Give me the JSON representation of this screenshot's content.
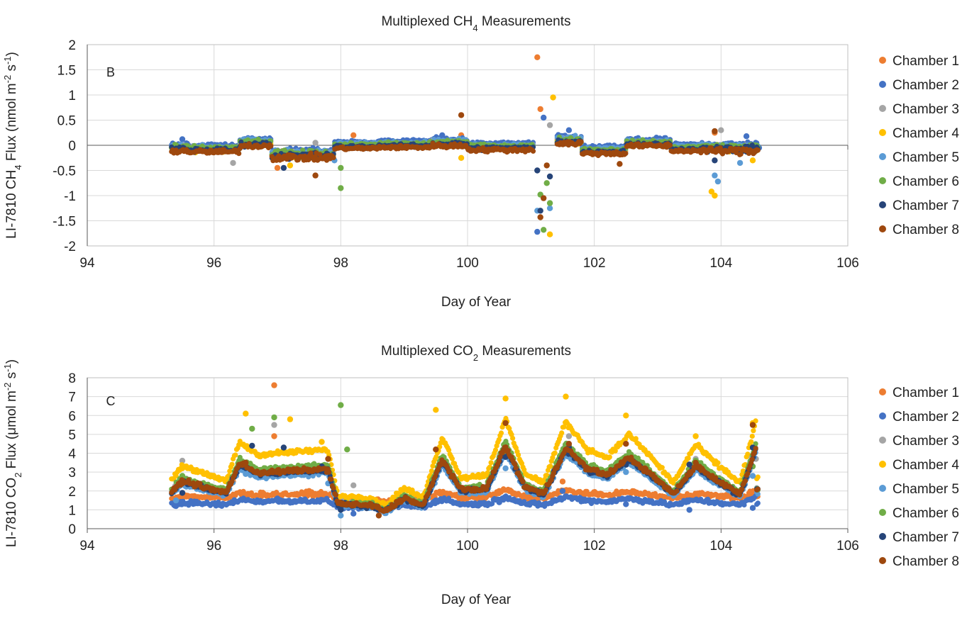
{
  "chart_data": [
    {
      "type": "scatter",
      "panel_label": "B",
      "title_prefix": "Multiplexed CH",
      "title_sub": "4",
      "title_suffix": " Measurements",
      "xlabel": "Day of Year",
      "ylabel_parts": [
        "LI-7810 CH",
        "4",
        " Flux (nmol m",
        "-2",
        " s",
        "-1",
        ")"
      ],
      "xlim": [
        94,
        106
      ],
      "ylim": [
        -2,
        2
      ],
      "x_ticks": [
        94,
        96,
        98,
        100,
        102,
        104,
        106
      ],
      "y_ticks": [
        -2,
        -1.5,
        -1,
        -0.5,
        0,
        0.5,
        1,
        1.5,
        2
      ],
      "y_tick_labels": [
        "-2",
        "-1.5",
        "-1",
        "-0.5",
        "0",
        "0.5",
        "1",
        "1.5",
        "2"
      ],
      "grid": true,
      "legend_position": "right",
      "series": [
        {
          "name": "Chamber 1",
          "color": "#ED7D31",
          "key_points": [
            [
              95.4,
              -0.05
            ],
            [
              96.5,
              0.05
            ],
            [
              97.0,
              -0.45
            ],
            [
              98.2,
              0.2
            ],
            [
              99.9,
              0.2
            ],
            [
              101.1,
              1.75
            ],
            [
              101.15,
              0.72
            ],
            [
              102.5,
              0.0
            ],
            [
              103.9,
              0.25
            ],
            [
              104.5,
              -0.1
            ]
          ]
        },
        {
          "name": "Chamber 2",
          "color": "#4472C4",
          "key_points": [
            [
              95.5,
              0.12
            ],
            [
              96.6,
              0.14
            ],
            [
              99.6,
              0.2
            ],
            [
              101.1,
              -1.72
            ],
            [
              101.2,
              0.55
            ],
            [
              101.6,
              0.3
            ],
            [
              102.6,
              0.1
            ],
            [
              104.4,
              0.18
            ],
            [
              104.6,
              -0.05
            ]
          ]
        },
        {
          "name": "Chamber 3",
          "color": "#A5A5A5",
          "key_points": [
            [
              96.3,
              -0.35
            ],
            [
              97.6,
              0.05
            ],
            [
              101.3,
              0.4
            ],
            [
              103.9,
              0.28
            ],
            [
              104.0,
              0.3
            ],
            [
              104.1,
              -0.1
            ]
          ]
        },
        {
          "name": "Chamber 4",
          "color": "#FFC000",
          "key_points": [
            [
              97.2,
              -0.4
            ],
            [
              99.9,
              -0.25
            ],
            [
              101.3,
              -1.77
            ],
            [
              101.35,
              0.95
            ],
            [
              103.85,
              -0.92
            ],
            [
              103.9,
              -1.0
            ],
            [
              104.5,
              -0.3
            ]
          ]
        },
        {
          "name": "Chamber 5",
          "color": "#5B9BD5",
          "key_points": [
            [
              97.9,
              -0.3
            ],
            [
              101.1,
              -1.3
            ],
            [
              101.3,
              -1.25
            ],
            [
              103.9,
              -0.6
            ],
            [
              103.95,
              -0.72
            ],
            [
              104.3,
              -0.35
            ]
          ]
        },
        {
          "name": "Chamber 6",
          "color": "#70AD47",
          "key_points": [
            [
              98.0,
              -0.85
            ],
            [
              98.0,
              -0.45
            ],
            [
              101.15,
              -0.98
            ],
            [
              101.2,
              -1.68
            ],
            [
              101.3,
              -1.15
            ],
            [
              101.25,
              -0.75
            ]
          ]
        },
        {
          "name": "Chamber 7",
          "color": "#264478",
          "key_points": [
            [
              97.1,
              -0.45
            ],
            [
              101.1,
              -0.5
            ],
            [
              101.15,
              -1.3
            ],
            [
              101.3,
              -0.62
            ],
            [
              103.9,
              -0.3
            ]
          ]
        },
        {
          "name": "Chamber 8",
          "color": "#9E480E",
          "key_points": [
            [
              97.6,
              -0.6
            ],
            [
              99.9,
              0.6
            ],
            [
              101.2,
              -1.05
            ],
            [
              101.25,
              -0.4
            ],
            [
              101.15,
              -1.43
            ],
            [
              102.4,
              -0.37
            ],
            [
              103.9,
              0.28
            ]
          ]
        }
      ]
    },
    {
      "type": "scatter",
      "panel_label": "C",
      "title_prefix": "Multiplexed CO",
      "title_sub": "2",
      "title_suffix": " Measurements",
      "xlabel": "Day of Year",
      "ylabel_parts": [
        "LI-7810 CO",
        "2",
        " Flux (μmol m",
        "-2",
        " s",
        "-1",
        ")"
      ],
      "xlim": [
        94,
        106
      ],
      "ylim": [
        0,
        8
      ],
      "x_ticks": [
        94,
        96,
        98,
        100,
        102,
        104,
        106
      ],
      "y_ticks": [
        0,
        1,
        2,
        3,
        4,
        5,
        6,
        7,
        8
      ],
      "y_tick_labels": [
        "0",
        "1",
        "2",
        "3",
        "4",
        "5",
        "6",
        "7",
        "8"
      ],
      "grid": true,
      "legend_position": "right",
      "series": [
        {
          "name": "Chamber 1",
          "color": "#ED7D31",
          "key_points": [
            [
              95.4,
              1.6
            ],
            [
              96.3,
              2.5
            ],
            [
              96.95,
              7.6
            ],
            [
              96.95,
              4.9
            ],
            [
              97.5,
              2.0
            ],
            [
              98.6,
              1.0
            ],
            [
              100.5,
              2.0
            ],
            [
              101.5,
              2.5
            ],
            [
              102.3,
              1.6
            ],
            [
              103.4,
              1.7
            ],
            [
              104.5,
              1.7
            ]
          ]
        },
        {
          "name": "Chamber 2",
          "color": "#4472C4",
          "key_points": [
            [
              95.4,
              1.2
            ],
            [
              96.3,
              1.4
            ],
            [
              97.0,
              1.6
            ],
            [
              98.2,
              0.8
            ],
            [
              99.5,
              1.5
            ],
            [
              100.5,
              1.4
            ],
            [
              101.5,
              2.0
            ],
            [
              102.5,
              1.3
            ],
            [
              103.5,
              1.0
            ],
            [
              104.5,
              1.1
            ]
          ]
        },
        {
          "name": "Chamber 3",
          "color": "#A5A5A5",
          "key_points": [
            [
              95.5,
              3.6
            ],
            [
              96.95,
              5.5
            ],
            [
              98.2,
              2.3
            ],
            [
              101.6,
              4.9
            ],
            [
              103.6,
              3.7
            ],
            [
              104.55,
              3.7
            ]
          ]
        },
        {
          "name": "Chamber 4",
          "color": "#FFC000",
          "key_points": [
            [
              95.5,
              3.2
            ],
            [
              96.5,
              6.1
            ],
            [
              97.2,
              5.8
            ],
            [
              97.7,
              4.6
            ],
            [
              99.5,
              6.3
            ],
            [
              100.6,
              6.9
            ],
            [
              101.55,
              7.0
            ],
            [
              102.5,
              6.0
            ],
            [
              103.6,
              4.9
            ],
            [
              104.5,
              5.6
            ]
          ]
        },
        {
          "name": "Chamber 5",
          "color": "#5B9BD5",
          "key_points": [
            [
              95.4,
              1.5
            ],
            [
              96.5,
              2.9
            ],
            [
              97.8,
              2.4
            ],
            [
              98.0,
              0.7
            ],
            [
              99.5,
              2.9
            ],
            [
              100.6,
              3.2
            ],
            [
              101.6,
              3.9
            ],
            [
              102.5,
              3.0
            ],
            [
              103.5,
              3.0
            ],
            [
              104.5,
              2.8
            ]
          ]
        },
        {
          "name": "Chamber 6",
          "color": "#70AD47",
          "key_points": [
            [
              95.5,
              2.8
            ],
            [
              96.6,
              5.3
            ],
            [
              96.95,
              5.9
            ],
            [
              98.0,
              6.55
            ],
            [
              98.1,
              4.2
            ],
            [
              99.6,
              3.7
            ],
            [
              100.6,
              4.0
            ],
            [
              101.6,
              4.4
            ],
            [
              102.5,
              3.8
            ],
            [
              103.6,
              3.6
            ],
            [
              104.5,
              3.3
            ]
          ]
        },
        {
          "name": "Chamber 7",
          "color": "#264478",
          "key_points": [
            [
              95.5,
              1.9
            ],
            [
              96.6,
              4.4
            ],
            [
              97.1,
              4.3
            ],
            [
              97.7,
              3.3
            ],
            [
              98.0,
              1.0
            ],
            [
              99.6,
              3.5
            ],
            [
              100.6,
              3.8
            ],
            [
              101.6,
              4.3
            ],
            [
              102.5,
              3.4
            ],
            [
              103.5,
              3.4
            ],
            [
              104.5,
              4.3
            ]
          ]
        },
        {
          "name": "Chamber 8",
          "color": "#9E480E",
          "key_points": [
            [
              95.5,
              2.4
            ],
            [
              96.5,
              3.5
            ],
            [
              97.8,
              3.7
            ],
            [
              98.6,
              0.7
            ],
            [
              99.5,
              4.2
            ],
            [
              100.6,
              5.6
            ],
            [
              101.6,
              4.5
            ],
            [
              102.5,
              4.5
            ],
            [
              103.6,
              3.5
            ],
            [
              104.5,
              5.5
            ]
          ]
        }
      ]
    }
  ]
}
